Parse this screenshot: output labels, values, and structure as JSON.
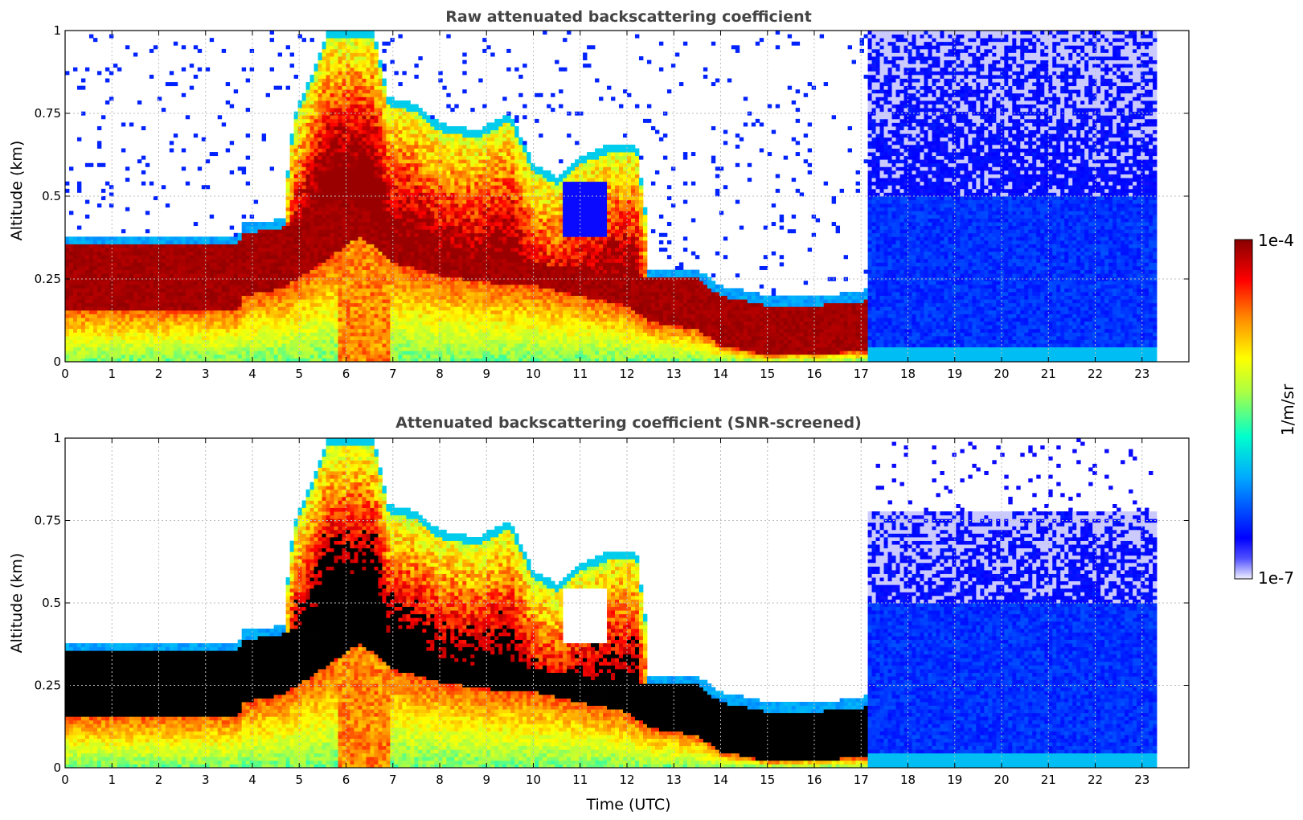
{
  "colors": {
    "colormap": [
      "#f0f0ff",
      "#0000ff",
      "#00aaff",
      "#00ffcc",
      "#aaff44",
      "#ffff00",
      "#ff8800",
      "#ff0000",
      "#880000"
    ],
    "screened_high": "#000000"
  },
  "colorbar": {
    "label": "1/m/sr",
    "max_label": "1e-4",
    "min_label": "1e-7",
    "scale": "log",
    "range": [
      1e-07,
      0.0001
    ]
  },
  "chart_data": [
    {
      "type": "heatmap",
      "title": "Raw attenuated backscattering coefficient",
      "xlabel": "",
      "ylabel": "Altitude (km)",
      "xlim": [
        0,
        24
      ],
      "ylim": [
        0,
        1
      ],
      "xticks": [
        "0",
        "1",
        "2",
        "3",
        "4",
        "5",
        "6",
        "7",
        "8",
        "9",
        "10",
        "11",
        "12",
        "13",
        "14",
        "15",
        "16",
        "17",
        "18",
        "19",
        "20",
        "21",
        "22",
        "23"
      ],
      "yticks": [
        "0",
        "0.25",
        "0.5",
        "0.75",
        "1"
      ],
      "grid": true,
      "screened": false
    },
    {
      "type": "heatmap",
      "title": "Attenuated backscattering coefficient (SNR-screened)",
      "xlabel": "Time (UTC)",
      "ylabel": "Altitude (km)",
      "xlim": [
        0,
        24
      ],
      "ylim": [
        0,
        1
      ],
      "xticks": [
        "0",
        "1",
        "2",
        "3",
        "4",
        "5",
        "6",
        "7",
        "8",
        "9",
        "10",
        "11",
        "12",
        "13",
        "14",
        "15",
        "16",
        "17",
        "18",
        "19",
        "20",
        "21",
        "22",
        "23"
      ],
      "yticks": [
        "0",
        "0.25",
        "0.5",
        "0.75",
        "1"
      ],
      "grid": true,
      "screened": true
    }
  ]
}
